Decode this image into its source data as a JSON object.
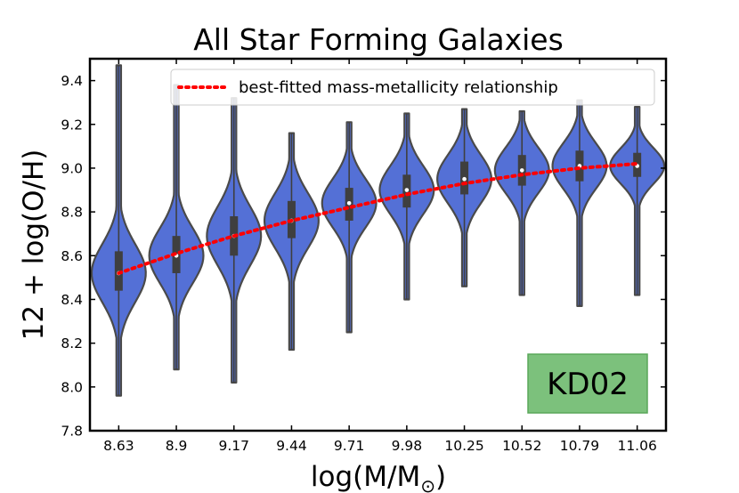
{
  "chart_data": {
    "type": "violin",
    "title": "All Star Forming Galaxies",
    "xlabel": "log(M/M",
    "xlabel_subscript": "⊙",
    "xlabel_close": ")",
    "ylabel": "12 + log(O/H)",
    "ylim": [
      7.8,
      9.5
    ],
    "yticks": [
      "7.8",
      "8.0",
      "8.2",
      "8.4",
      "8.6",
      "8.8",
      "9.0",
      "9.2",
      "9.4"
    ],
    "categories": [
      "8.63",
      "8.9",
      "9.17",
      "9.44",
      "9.71",
      "9.98",
      "10.25",
      "10.52",
      "10.79",
      "11.06"
    ],
    "violins": [
      {
        "min": 7.96,
        "q1": 8.44,
        "median": 8.52,
        "q3": 8.62,
        "max": 9.47
      },
      {
        "min": 8.08,
        "q1": 8.52,
        "median": 8.6,
        "q3": 8.69,
        "max": 9.38
      },
      {
        "min": 8.02,
        "q1": 8.6,
        "median": 8.69,
        "q3": 8.78,
        "max": 9.32
      },
      {
        "min": 8.17,
        "q1": 8.68,
        "median": 8.76,
        "q3": 8.85,
        "max": 9.16
      },
      {
        "min": 8.25,
        "q1": 8.76,
        "median": 8.84,
        "q3": 8.91,
        "max": 9.21
      },
      {
        "min": 8.4,
        "q1": 8.82,
        "median": 8.9,
        "q3": 8.97,
        "max": 9.25
      },
      {
        "min": 8.46,
        "q1": 8.88,
        "median": 8.95,
        "q3": 9.03,
        "max": 9.27
      },
      {
        "min": 8.42,
        "q1": 8.92,
        "median": 8.99,
        "q3": 9.06,
        "max": 9.26
      },
      {
        "min": 8.37,
        "q1": 8.94,
        "median": 9.01,
        "q3": 9.08,
        "max": 9.31
      },
      {
        "min": 8.42,
        "q1": 8.96,
        "median": 9.01,
        "q3": 9.07,
        "max": 9.28
      }
    ],
    "fit": {
      "name": "best-fitted mass-metallicity relationship",
      "y": [
        8.52,
        8.61,
        8.69,
        8.76,
        8.82,
        8.88,
        8.93,
        8.97,
        9.0,
        9.02
      ],
      "color": "#ff0000"
    },
    "violin_color": "#5470d6",
    "legend_position": "top-right",
    "badge": {
      "label": "KD02",
      "color": "#7cc17c"
    }
  }
}
